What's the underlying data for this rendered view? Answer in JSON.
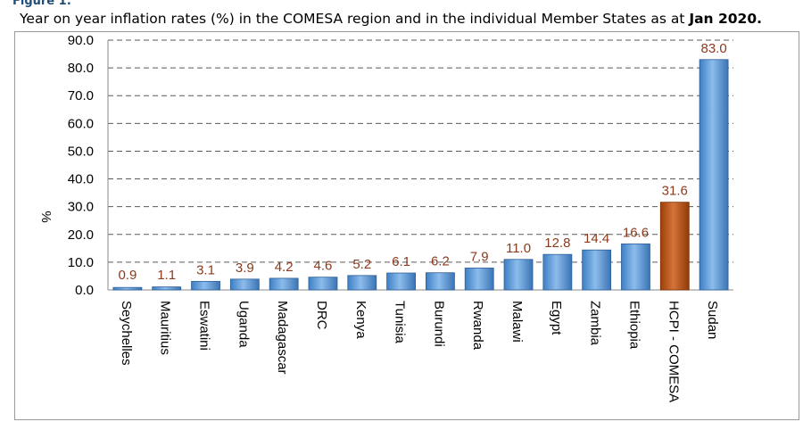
{
  "figure_label": "Figure 1:",
  "title": {
    "text": "Year on year inflation rates (%) in the COMESA region and in the individual Member States as at ",
    "bold": "Jan 2020."
  },
  "chart_data": {
    "type": "bar",
    "title": "Year on year inflation rates (%) in the COMESA region and in the individual Member States as at Jan 2020.",
    "xlabel": "",
    "ylabel": "%",
    "ylim": [
      0,
      90
    ],
    "yticks": [
      "0.0",
      "10.0",
      "20.0",
      "30.0",
      "40.0",
      "50.0",
      "60.0",
      "70.0",
      "80.0",
      "90.0"
    ],
    "grid": "dashed horizontal",
    "categories": [
      "Seychelles",
      "Mauritius",
      "Eswatini",
      "Uganda",
      "Madagascar",
      "DRC",
      "Kenya",
      "Tunisia",
      "Burundi",
      "Rwanda",
      "Malawi",
      "Egypt",
      "Zambia",
      "Ethiopia",
      "HCPI - COMESA",
      "Sudan"
    ],
    "values": [
      0.9,
      1.1,
      3.1,
      3.9,
      4.2,
      4.6,
      5.2,
      6.1,
      6.2,
      7.9,
      11.0,
      12.8,
      14.4,
      16.6,
      31.6,
      83.0
    ],
    "data_labels": [
      "0.9",
      "1.1",
      "3.1",
      "3.9",
      "4.2",
      "4.6",
      "5.2",
      "6.1",
      "6.2",
      "7.9",
      "11.0",
      "12.8",
      "14.4",
      "16.6",
      "31.6",
      "83.0"
    ],
    "colors": {
      "member_bar": "#5b9bd5",
      "comesa_bar": "#c55a11",
      "highlight_category": "HCPI - COMESA",
      "data_label": "#8b3a1e"
    }
  }
}
